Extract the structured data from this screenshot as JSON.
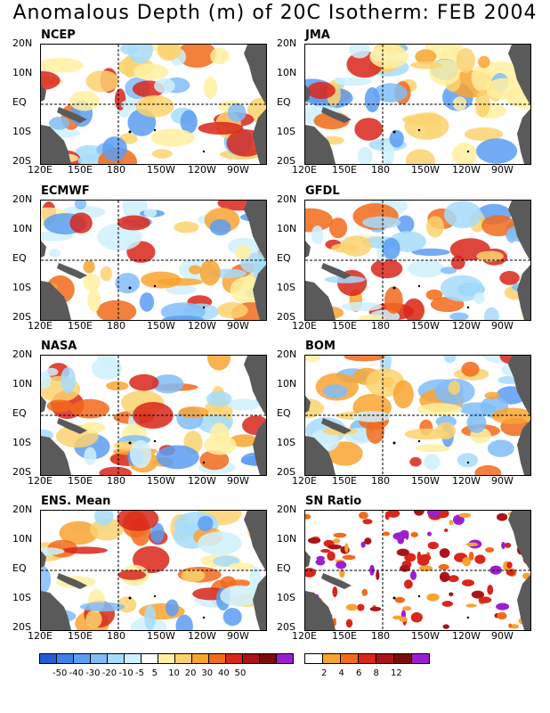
{
  "title": "Anomalous Depth (m) of 20C Isotherm: FEB 2004",
  "lat_labels": [
    "20N",
    "10N",
    "EQ",
    "10S",
    "20S"
  ],
  "lon_labels": [
    "120E",
    "150E",
    "180",
    "150W",
    "120W",
    "90W"
  ],
  "panels": [
    {
      "name": "NCEP"
    },
    {
      "name": "JMA"
    },
    {
      "name": "ECMWF"
    },
    {
      "name": "GFDL"
    },
    {
      "name": "NASA"
    },
    {
      "name": "BOM"
    },
    {
      "name": "ENS. Mean"
    },
    {
      "name": "SN Ratio"
    }
  ],
  "colorbar_anom": {
    "colors": [
      "#1f5fd6",
      "#3d7fe8",
      "#5a9ef2",
      "#80bdf8",
      "#a6dcfc",
      "#cff1fd",
      "#ffffff",
      "#fff0a0",
      "#fbd26e",
      "#f9a331",
      "#f26a1b",
      "#d8261a",
      "#a9141b",
      "#7a0d0d",
      "#9b1fd2"
    ],
    "labels": [
      "-50",
      "-40",
      "-30",
      "-20",
      "-10",
      "-5",
      "5",
      "10",
      "20",
      "30",
      "40",
      "50"
    ]
  },
  "colorbar_sn": {
    "colors": [
      "#ffffff",
      "#f9a331",
      "#f26a1b",
      "#d8261a",
      "#a9141b",
      "#7a0d0d",
      "#9b1fd2"
    ],
    "labels": [
      "2",
      "4",
      "6",
      "8",
      "12"
    ]
  }
}
